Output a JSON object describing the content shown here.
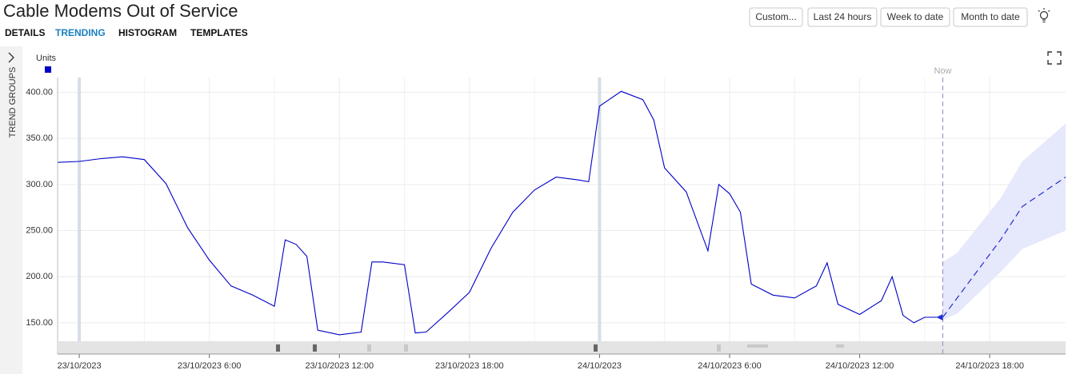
{
  "header": {
    "title": "Cable Modems Out of Service",
    "tabs": [
      "DETAILS",
      "TRENDING",
      "HISTOGRAM",
      "TEMPLATES"
    ],
    "buttons": [
      "Custom...",
      "Last 24 hours",
      "Week to date",
      "Month to date"
    ]
  },
  "side_panel": {
    "label": "TREND GROUPS"
  },
  "chart_data": {
    "type": "line",
    "xlim": [
      "22/10/2023 23:00",
      "24/10/2023 21:30"
    ],
    "xticks": [
      {
        "value": "23/10/2023 0:00",
        "label": "23/10/2023"
      },
      {
        "value": "23/10/2023 6:00",
        "label": "23/10/2023 6:00"
      },
      {
        "value": "23/10/2023 12:00",
        "label": "23/10/2023 12:00"
      },
      {
        "value": "23/10/2023 18:00",
        "label": "23/10/2023 18:00"
      },
      {
        "value": "24/10/2023 0:00",
        "label": "24/10/2023"
      },
      {
        "value": "24/10/2023 6:00",
        "label": "24/10/2023 6:00"
      },
      {
        "value": "24/10/2023 12:00",
        "label": "24/10/2023 12:00"
      },
      {
        "value": "24/10/2023 18:00",
        "label": "24/10/2023 18:00"
      }
    ],
    "ylim": [
      130,
      416
    ],
    "yticks": [
      {
        "value": 150,
        "label": "150.00"
      },
      {
        "value": 200,
        "label": "200.00"
      },
      {
        "value": 250,
        "label": "250.00"
      },
      {
        "value": 300,
        "label": "300.00"
      },
      {
        "value": 350,
        "label": "350.00"
      },
      {
        "value": 400,
        "label": "400.00"
      }
    ],
    "grid": true,
    "now_marker": {
      "label": "Now",
      "x": "24/10/2023 15:50"
    },
    "series": [
      {
        "name": "Units",
        "color": "#0000c8",
        "x": [
          "22/10/2023 23:00",
          "23/10/2023 0:00",
          "23/10/2023 1:00",
          "23/10/2023 2:00",
          "23/10/2023 3:00",
          "23/10/2023 4:00",
          "23/10/2023 5:00",
          "23/10/2023 6:00",
          "23/10/2023 7:00",
          "23/10/2023 8:00",
          "23/10/2023 9:00",
          "23/10/2023 9:30",
          "23/10/2023 10:00",
          "23/10/2023 10:30",
          "23/10/2023 11:00",
          "23/10/2023 12:00",
          "23/10/2023 13:00",
          "23/10/2023 13:30",
          "23/10/2023 14:00",
          "23/10/2023 15:00",
          "23/10/2023 15:30",
          "23/10/2023 16:00",
          "23/10/2023 17:00",
          "23/10/2023 18:00",
          "23/10/2023 19:00",
          "23/10/2023 20:00",
          "23/10/2023 21:00",
          "23/10/2023 22:00",
          "23/10/2023 23:00",
          "23/10/2023 23:30",
          "24/10/2023 0:00",
          "24/10/2023 1:00",
          "24/10/2023 2:00",
          "24/10/2023 2:30",
          "24/10/2023 3:00",
          "24/10/2023 4:00",
          "24/10/2023 5:00",
          "24/10/2023 5:30",
          "24/10/2023 6:00",
          "24/10/2023 6:30",
          "24/10/2023 7:00",
          "24/10/2023 8:00",
          "24/10/2023 9:00",
          "24/10/2023 10:00",
          "24/10/2023 10:30",
          "24/10/2023 11:00",
          "24/10/2023 12:00",
          "24/10/2023 13:00",
          "24/10/2023 13:30",
          "24/10/2023 14:00",
          "24/10/2023 14:30",
          "24/10/2023 15:00",
          "24/10/2023 15:50"
        ],
        "values": [
          324,
          325,
          328,
          330,
          327,
          301,
          253,
          218,
          190,
          180,
          168,
          240,
          235,
          222,
          142,
          137,
          140,
          216,
          216,
          213,
          139,
          140,
          161,
          183,
          231,
          270,
          294,
          308,
          305,
          303,
          385,
          401,
          392,
          370,
          318,
          292,
          228,
          300,
          290,
          270,
          192,
          180,
          177,
          190,
          215,
          170,
          159,
          174,
          200,
          158,
          150,
          156,
          156
        ]
      }
    ],
    "forecast": {
      "color": "#2030d0",
      "band_color": "#e6e8fb",
      "x": [
        "24/10/2023 15:50",
        "24/10/2023 16:30",
        "24/10/2023 18:30",
        "24/10/2023 19:30",
        "24/10/2023 21:30"
      ],
      "values": [
        156,
        177,
        240,
        276,
        308
      ],
      "upper": [
        216,
        226,
        285,
        325,
        366
      ],
      "lower": [
        153,
        160,
        205,
        230,
        250
      ]
    }
  }
}
